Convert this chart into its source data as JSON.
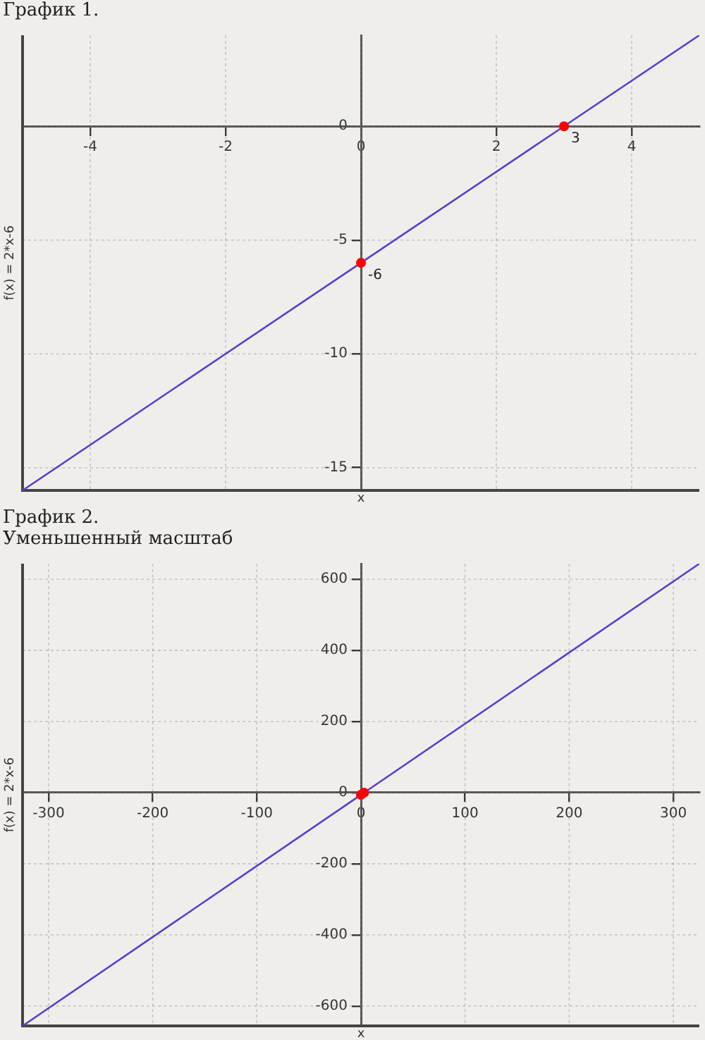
{
  "chart_data": [
    {
      "type": "line",
      "title": "График 1.",
      "xlabel": "x",
      "ylabel": "f(x) = 2*x-6",
      "xlim": [
        -5,
        5
      ],
      "ylim": [
        -16,
        4
      ],
      "xticks": [
        -4,
        -2,
        0,
        2,
        4
      ],
      "yticks": [
        -15,
        -10,
        -5,
        0
      ],
      "grid": true,
      "legend": false,
      "series": [
        {
          "type": "line",
          "color": "#5b3fd0",
          "x": [
            -5,
            5
          ],
          "values": [
            -16,
            4
          ],
          "marker": "none"
        },
        {
          "type": "scatter",
          "color": "#ff0000",
          "x": [
            0,
            3
          ],
          "values": [
            -6,
            0
          ],
          "marker": "circle"
        }
      ],
      "annotations": [
        {
          "text": "-6",
          "x": 0,
          "y": -6
        },
        {
          "text": "3",
          "x": 3,
          "y": 0
        }
      ]
    },
    {
      "type": "line",
      "title": "График 2.",
      "subtitle": "Уменьшенный масштаб",
      "xlabel": "x",
      "ylabel": "f(x) = 2*x-6",
      "xlim": [
        -325,
        325
      ],
      "ylim": [
        -656,
        644
      ],
      "xticks": [
        -300,
        -200,
        -100,
        0,
        100,
        200,
        300
      ],
      "yticks": [
        -600,
        -400,
        -200,
        0,
        200,
        400,
        600
      ],
      "grid": true,
      "legend": false,
      "series": [
        {
          "type": "line",
          "color": "#5b3fd0",
          "x": [
            -325,
            325
          ],
          "values": [
            -656,
            644
          ],
          "marker": "none"
        },
        {
          "type": "scatter",
          "color": "#ff0000",
          "x": [
            0,
            3
          ],
          "values": [
            -6,
            0
          ],
          "marker": "circle"
        }
      ]
    }
  ]
}
